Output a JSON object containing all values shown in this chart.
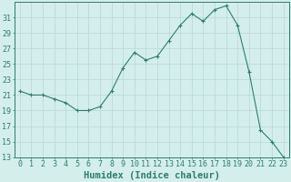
{
  "x": [
    0,
    1,
    2,
    3,
    4,
    5,
    6,
    7,
    8,
    9,
    10,
    11,
    12,
    13,
    14,
    15,
    16,
    17,
    18,
    19,
    20,
    21,
    22,
    23
  ],
  "y": [
    21.5,
    21,
    21,
    20.5,
    20,
    19,
    19,
    19.5,
    21.5,
    24.5,
    26.5,
    25.5,
    26,
    28,
    30,
    31.5,
    30.5,
    32,
    32.5,
    30,
    24,
    16.5,
    15,
    13
  ],
  "line_color": "#2e7d6e",
  "marker": "P",
  "marker_size": 2.5,
  "bg_color": "#d4eeec",
  "grid_color": "#b5d8d4",
  "title": "",
  "xlabel": "Humidex (Indice chaleur)",
  "ylabel": "",
  "xlim": [
    -0.5,
    23.5
  ],
  "ylim": [
    13,
    33
  ],
  "yticks": [
    13,
    15,
    17,
    19,
    21,
    23,
    25,
    27,
    29,
    31
  ],
  "xtick_labels": [
    "0",
    "1",
    "2",
    "3",
    "4",
    "5",
    "6",
    "7",
    "8",
    "9",
    "10",
    "11",
    "12",
    "13",
    "14",
    "15",
    "16",
    "17",
    "18",
    "19",
    "20",
    "21",
    "22",
    "23"
  ],
  "tick_color": "#2e7d6e",
  "label_color": "#2e7d6e",
  "tick_fontsize": 6,
  "xlabel_fontsize": 7.5
}
